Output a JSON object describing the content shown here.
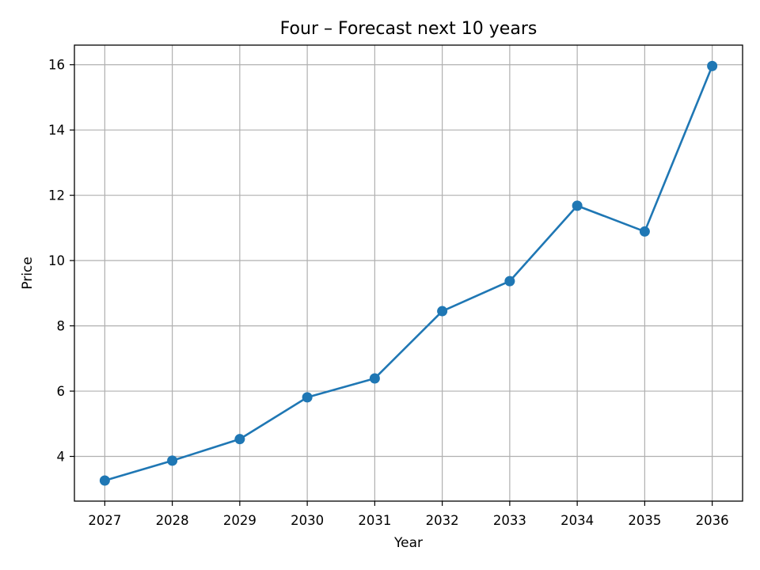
{
  "chart_data": {
    "type": "line",
    "title": "Four – Forecast next 10 years",
    "xlabel": "Year",
    "ylabel": "Price",
    "x": [
      2027,
      2028,
      2029,
      2030,
      2031,
      2032,
      2033,
      2034,
      2035,
      2036
    ],
    "x_tick_labels": [
      "2027",
      "2028",
      "2029",
      "2030",
      "2031",
      "2032",
      "2033",
      "2034",
      "2035",
      "2036"
    ],
    "y_ticks": [
      4,
      6,
      8,
      10,
      12,
      14,
      16
    ],
    "y_tick_labels": [
      "4",
      "6",
      "8",
      "10",
      "12",
      "14",
      "16"
    ],
    "xlim": [
      2026.55,
      2036.45
    ],
    "ylim": [
      2.63,
      16.6
    ],
    "grid": true,
    "series": [
      {
        "values": [
          3.26,
          3.87,
          4.53,
          5.81,
          6.39,
          8.45,
          9.37,
          11.68,
          10.89,
          15.96
        ],
        "color": "#1f77b4",
        "marker": "circle"
      }
    ]
  }
}
